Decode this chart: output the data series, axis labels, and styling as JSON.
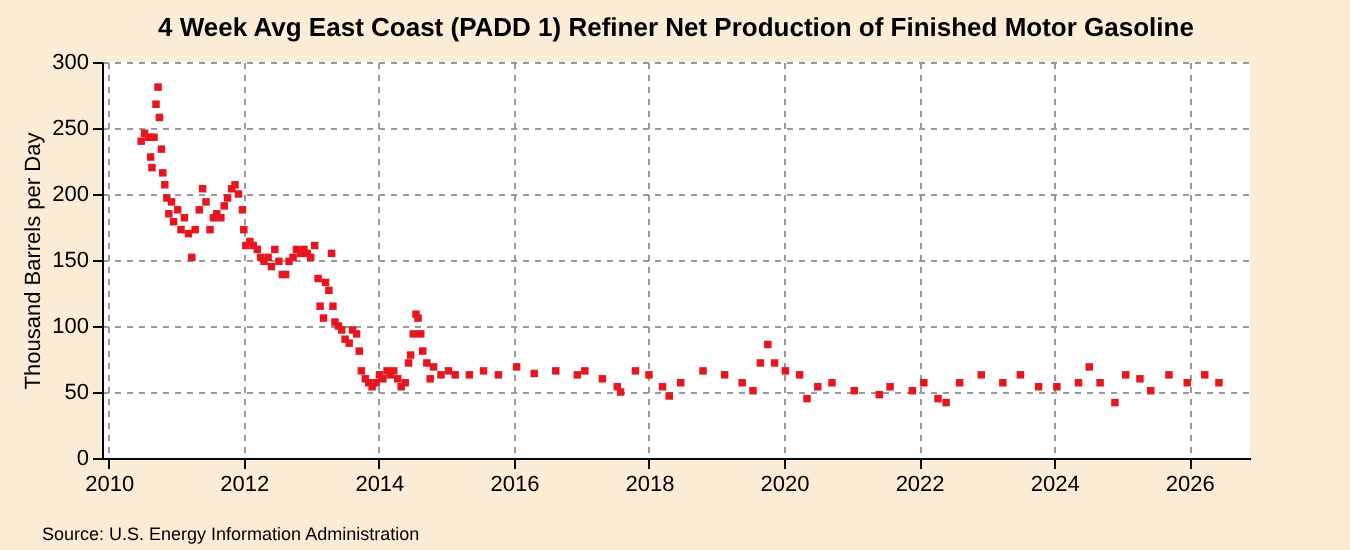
{
  "chart_data": {
    "type": "scatter",
    "title": "4 Week Avg East Coast (PADD 1) Refiner Net Production of Finished Motor Gasoline",
    "ylabel": "Thousand Barrels per Day",
    "annotations": [
      "Source: U.S. Energy Information Administration"
    ],
    "x": [
      2010.48,
      2010.53,
      2010.59,
      2010.62,
      2010.64,
      2010.67,
      2010.7,
      2010.73,
      2010.75,
      2010.78,
      2010.8,
      2010.83,
      2010.86,
      2010.89,
      2010.93,
      2010.96,
      2011.02,
      2011.07,
      2011.12,
      2011.18,
      2011.23,
      2011.28,
      2011.34,
      2011.39,
      2011.44,
      2011.5,
      2011.55,
      2011.6,
      2011.66,
      2011.71,
      2011.76,
      2011.82,
      2011.87,
      2011.92,
      2011.98,
      2012.0,
      2012.03,
      2012.09,
      2012.14,
      2012.2,
      2012.25,
      2012.3,
      2012.36,
      2012.41,
      2012.46,
      2012.52,
      2012.57,
      2012.62,
      2012.67,
      2012.73,
      2012.78,
      2012.84,
      2012.89,
      2012.94,
      2012.99,
      2013.05,
      2013.1,
      2013.13,
      2013.18,
      2013.21,
      2013.26,
      2013.3,
      2013.32,
      2013.35,
      2013.4,
      2013.45,
      2013.5,
      2013.56,
      2013.61,
      2013.67,
      2013.71,
      2013.74,
      2013.8,
      2013.85,
      2013.9,
      2013.96,
      2014.01,
      2014.06,
      2014.12,
      2014.17,
      2014.22,
      2014.28,
      2014.33,
      2014.39,
      2014.44,
      2014.47,
      2014.51,
      2014.55,
      2014.58,
      2014.62,
      2014.65,
      2014.71,
      2014.76,
      2014.81,
      2014.92,
      2015.03,
      2015.13,
      2015.34,
      2015.55,
      2015.77,
      2016.04,
      2016.3,
      2016.62,
      2016.94,
      2017.05,
      2017.31,
      2017.53,
      2017.58,
      2017.8,
      2018.0,
      2018.2,
      2018.3,
      2018.47,
      2018.8,
      2019.12,
      2019.38,
      2019.54,
      2019.65,
      2019.76,
      2019.86,
      2020.02,
      2020.23,
      2020.34,
      2020.5,
      2020.71,
      2021.04,
      2021.41,
      2021.57,
      2021.9,
      2022.07,
      2022.28,
      2022.4,
      2022.6,
      2022.92,
      2023.24,
      2023.5,
      2023.77,
      2024.04,
      2024.36,
      2024.52,
      2024.68,
      2024.9,
      2025.06,
      2025.27,
      2025.43,
      2025.7,
      2025.97,
      2026.23,
      2026.44
    ],
    "series": [
      {
        "color": "#e8141e",
        "values": [
          240,
          246,
          243,
          228,
          220,
          243,
          268,
          281,
          258,
          234,
          216,
          207,
          197,
          185,
          194,
          179,
          188,
          173,
          182,
          170,
          152,
          173,
          188,
          204,
          194,
          173,
          182,
          185,
          182,
          191,
          197,
          204,
          207,
          200,
          188,
          173,
          161,
          164,
          161,
          158,
          152,
          149,
          152,
          145,
          158,
          149,
          139,
          139,
          149,
          152,
          158,
          155,
          158,
          155,
          152,
          161,
          136,
          115,
          106,
          133,
          127,
          155,
          115,
          103,
          100,
          97,
          90,
          87,
          97,
          94,
          81,
          66,
          60,
          57,
          54,
          57,
          63,
          60,
          66,
          63,
          66,
          60,
          54,
          57,
          72,
          78,
          94,
          109,
          106,
          94,
          81,
          72,
          60,
          69,
          63,
          66,
          63,
          63,
          66,
          63,
          69,
          64,
          66,
          63,
          66,
          60,
          54,
          50,
          66,
          63,
          54,
          47,
          57,
          66,
          63,
          57,
          51,
          72,
          86,
          72,
          66,
          63,
          45,
          54,
          57,
          51,
          48,
          54,
          51,
          57,
          45,
          42,
          57,
          63,
          57,
          63,
          54,
          54,
          57,
          69,
          57,
          42,
          63,
          60,
          51,
          63,
          57,
          63,
          57
        ]
      }
    ],
    "marker": "square",
    "grid": true,
    "xlim": [
      2009.9,
      2026.9
    ],
    "xticks": [
      2010,
      2012,
      2014,
      2016,
      2018,
      2020,
      2022,
      2024,
      2026
    ],
    "ylim": [
      0,
      300
    ],
    "yticks": [
      0,
      50,
      100,
      150,
      200,
      250,
      300
    ]
  }
}
